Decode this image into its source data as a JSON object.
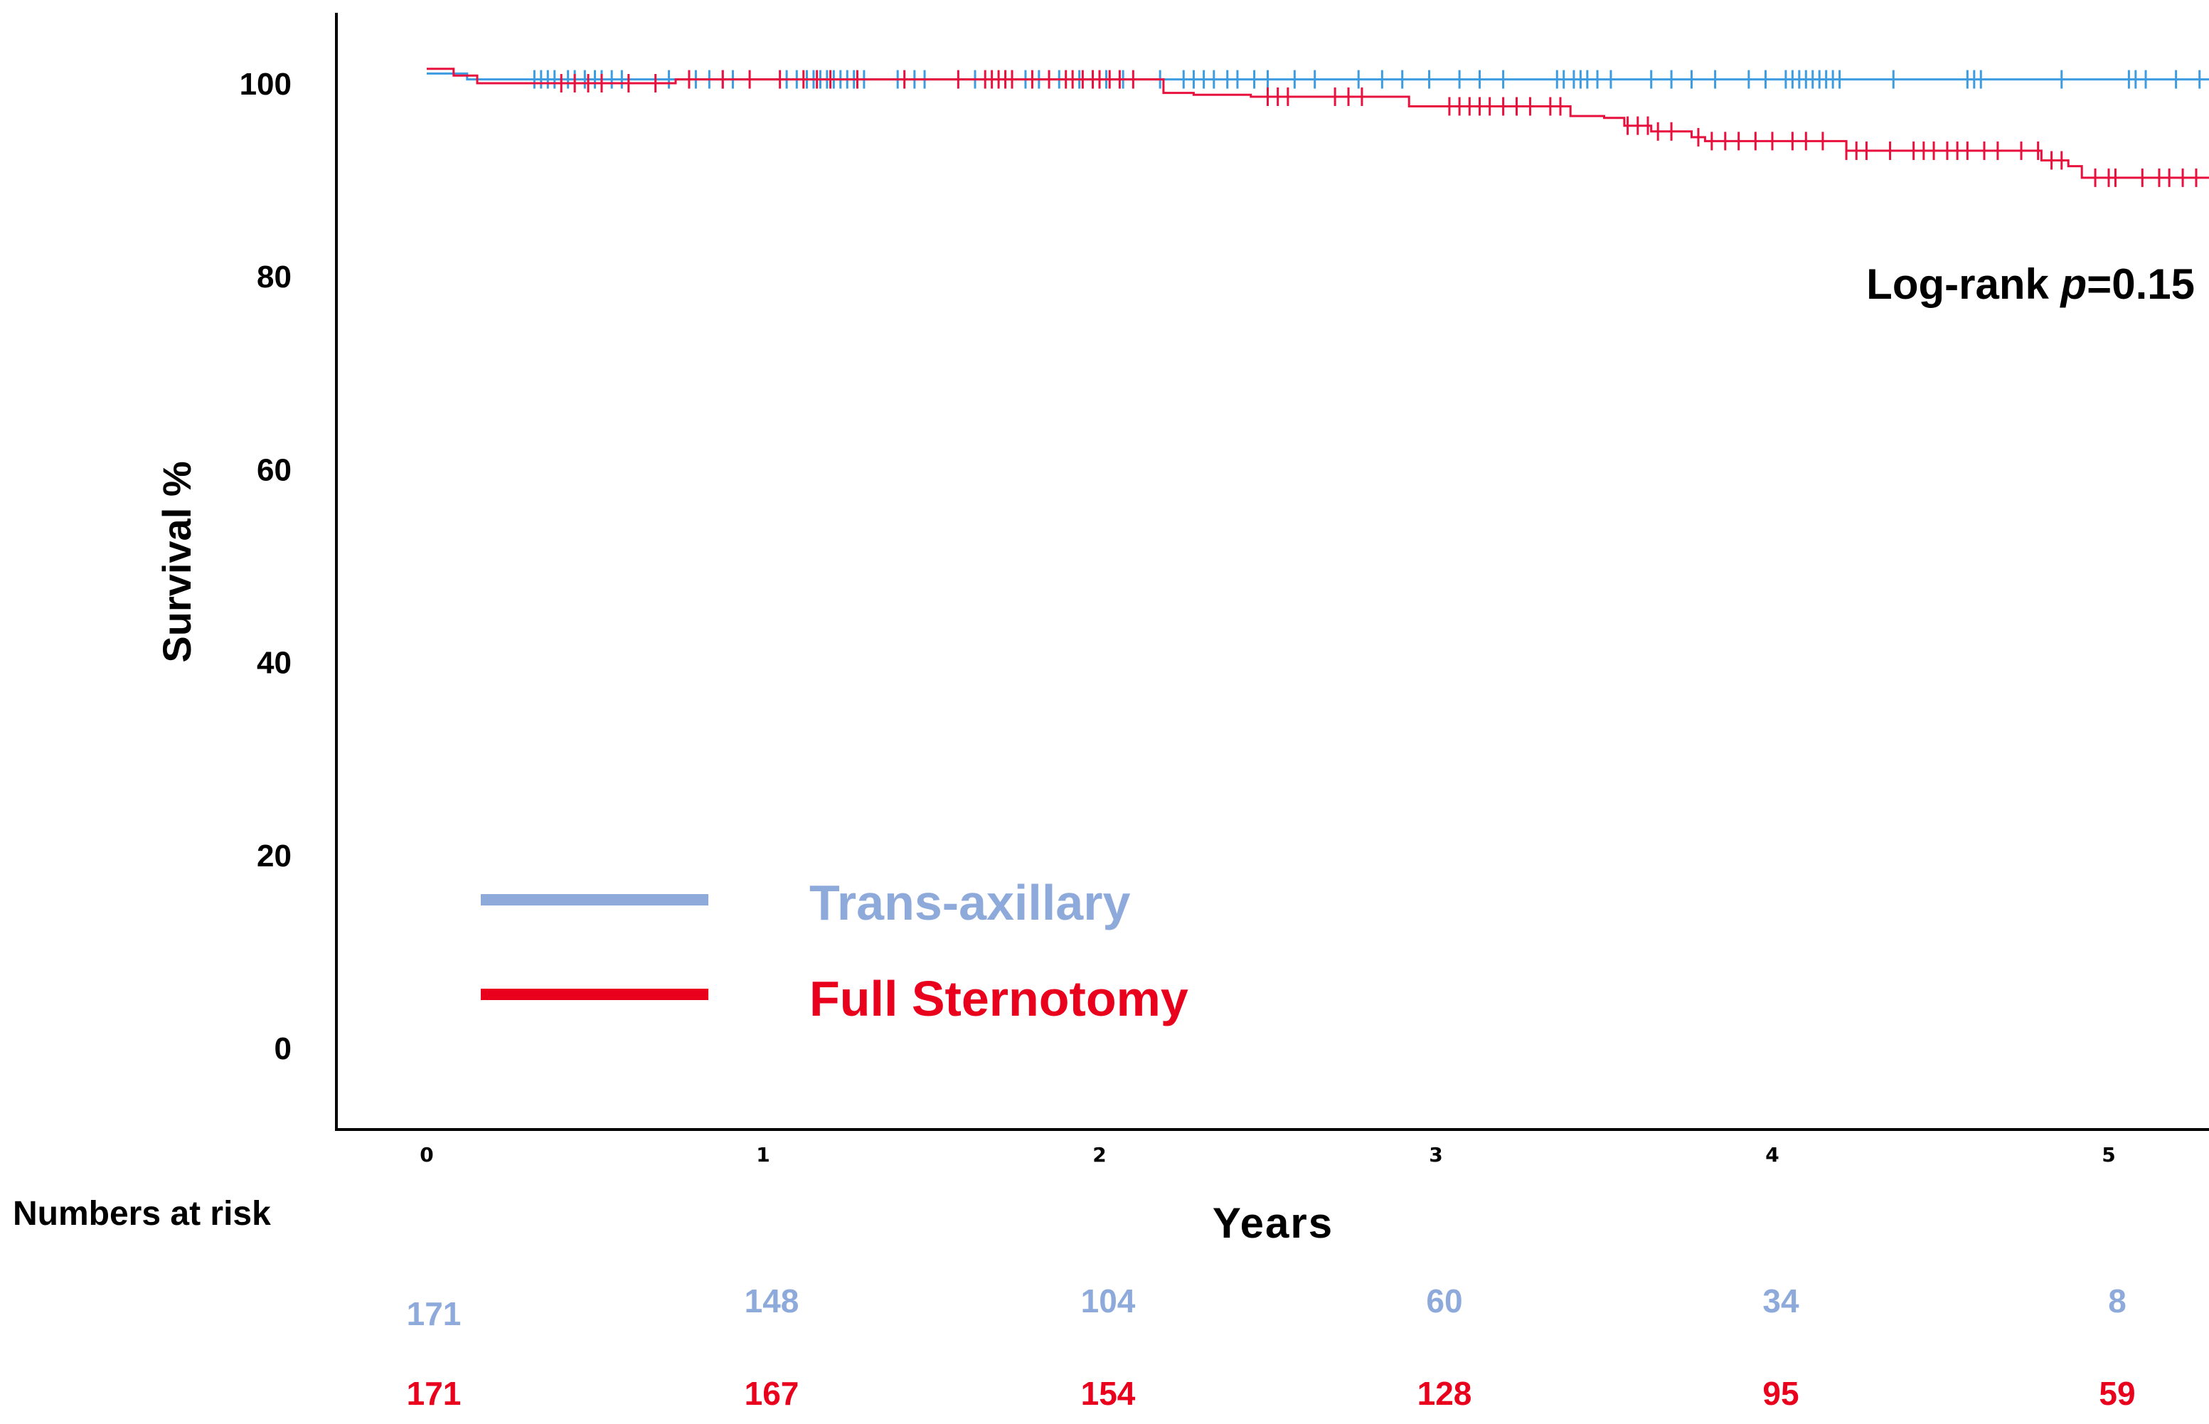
{
  "chart_data": {
    "type": "line",
    "subtype": "kaplan-meier",
    "title": "",
    "xlabel": "Years",
    "ylabel": "Survival %",
    "xlim": [
      0,
      5.3
    ],
    "ylim": [
      -7,
      108
    ],
    "x_ticks": [
      0,
      1,
      2,
      3,
      4,
      5
    ],
    "x_tick_labels": [
      "0",
      "1",
      "2",
      "3",
      "4",
      "5"
    ],
    "y_ticks": [
      0,
      20,
      40,
      60,
      80,
      100
    ],
    "y_tick_labels": [
      "0",
      "20",
      "40",
      "60",
      "80",
      "100"
    ],
    "grid": false,
    "annotation": {
      "prefix": "Log-rank ",
      "italic": "p",
      "suffix": "=0.15"
    },
    "legend": {
      "placement": "lower-left",
      "items": [
        {
          "label": "Trans-axillary",
          "color": "#8eaadb"
        },
        {
          "label": "Full Sternotomy",
          "color": "#e8001c"
        }
      ]
    },
    "series": [
      {
        "name": "Trans-axillary",
        "color": "#3d9be0",
        "steps": [
          [
            0,
            101
          ],
          [
            0.12,
            100.4
          ],
          [
            5.3,
            100.4
          ]
        ],
        "censored": [
          0.32,
          0.34,
          0.36,
          0.38,
          0.42,
          0.44,
          0.47,
          0.5,
          0.52,
          0.55,
          0.58,
          0.72,
          0.8,
          0.84,
          0.88,
          0.91,
          1.07,
          1.1,
          1.13,
          1.15,
          1.17,
          1.19,
          1.21,
          1.23,
          1.25,
          1.27,
          1.3,
          1.4,
          1.45,
          1.48,
          1.63,
          1.74,
          1.78,
          1.82,
          1.88,
          1.94,
          1.98,
          2.02,
          2.07,
          2.18,
          2.25,
          2.28,
          2.31,
          2.34,
          2.38,
          2.41,
          2.46,
          2.5,
          2.58,
          2.64,
          2.77,
          2.84,
          2.9,
          2.98,
          3.07,
          3.13,
          3.2,
          3.36,
          3.38,
          3.41,
          3.43,
          3.45,
          3.48,
          3.52,
          3.64,
          3.7,
          3.76,
          3.83,
          3.93,
          3.98,
          4.04,
          4.06,
          4.08,
          4.1,
          4.12,
          4.14,
          4.16,
          4.18,
          4.2,
          4.36,
          4.58,
          4.6,
          4.62,
          4.86,
          5.06,
          5.08,
          5.11,
          5.2,
          5.27
        ]
      },
      {
        "name": "Full Sternotomy",
        "color": "#e8103c",
        "steps": [
          [
            0,
            101.5
          ],
          [
            0.08,
            100.8
          ],
          [
            0.15,
            100
          ],
          [
            0.72,
            100
          ],
          [
            0.74,
            100.4
          ],
          [
            1.2,
            100.4
          ],
          [
            2.17,
            100.4
          ],
          [
            2.19,
            99
          ],
          [
            2.28,
            98.8
          ],
          [
            2.45,
            98.6
          ],
          [
            2.9,
            98.6
          ],
          [
            2.92,
            97.6
          ],
          [
            3.38,
            97.6
          ],
          [
            3.4,
            96.6
          ],
          [
            3.5,
            96.4
          ],
          [
            3.56,
            95.6
          ],
          [
            3.64,
            95
          ],
          [
            3.76,
            94.4
          ],
          [
            3.8,
            94
          ],
          [
            4.2,
            94
          ],
          [
            4.22,
            93
          ],
          [
            4.78,
            93
          ],
          [
            4.8,
            92
          ],
          [
            4.88,
            91.4
          ],
          [
            4.92,
            90.2
          ],
          [
            5.3,
            90.2
          ]
        ],
        "censored": [
          0.4,
          0.44,
          0.48,
          0.52,
          0.6,
          0.68,
          0.78,
          0.88,
          0.96,
          1.05,
          1.12,
          1.16,
          1.2,
          1.28,
          1.42,
          1.58,
          1.66,
          1.68,
          1.7,
          1.72,
          1.74,
          1.8,
          1.85,
          1.9,
          1.92,
          1.95,
          1.98,
          2.0,
          2.03,
          2.06,
          2.1,
          2.5,
          2.53,
          2.56,
          2.7,
          2.74,
          2.78,
          3.04,
          3.07,
          3.1,
          3.13,
          3.16,
          3.2,
          3.24,
          3.28,
          3.34,
          3.37,
          3.57,
          3.6,
          3.63,
          3.66,
          3.7,
          3.78,
          3.82,
          3.86,
          3.9,
          3.95,
          4.0,
          4.06,
          4.1,
          4.15,
          4.22,
          4.25,
          4.28,
          4.35,
          4.42,
          4.45,
          4.48,
          4.52,
          4.55,
          4.58,
          4.63,
          4.67,
          4.74,
          4.79,
          4.83,
          4.86,
          4.96,
          5.0,
          5.02,
          5.1,
          5.15,
          5.18,
          5.22,
          5.26
        ]
      }
    ],
    "numbers_at_risk": {
      "heading": "Numbers at risk",
      "times": [
        0,
        1,
        2,
        3,
        4,
        5
      ],
      "rows": [
        {
          "group": "Trans-axillary",
          "color": "#8eaadb",
          "values": [
            "171",
            "148",
            "104",
            "60",
            "34",
            "8"
          ]
        },
        {
          "group": "Full Sternotomy",
          "color": "#e8001c",
          "values": [
            "171",
            "167",
            "154",
            "128",
            "95",
            "59"
          ]
        }
      ]
    }
  }
}
